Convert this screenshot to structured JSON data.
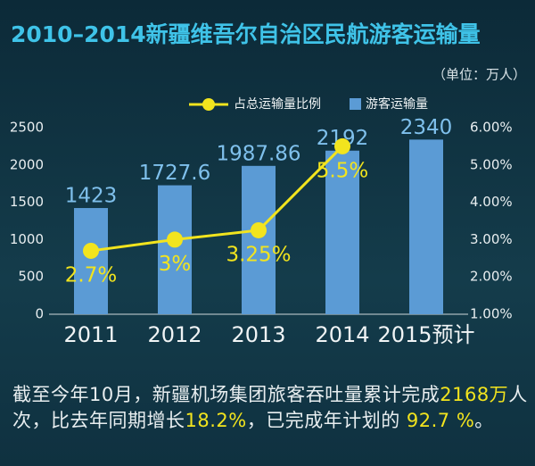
{
  "chart_data": {
    "type": "bar",
    "title": "2010–2014新疆维吾尔自治区民航游客运输量",
    "unit_note": "（单位：万人）",
    "categories": [
      "2011",
      "2012",
      "2013",
      "2014",
      "2015预计"
    ],
    "series": [
      {
        "name": "游客运输量",
        "type": "bar",
        "color": "#5b9bd5",
        "values": [
          1423,
          1727.6,
          1987.86,
          2192,
          2340
        ]
      },
      {
        "name": "占总运输量比例",
        "type": "line",
        "axis": "y2",
        "color": "#f2e41e",
        "values": [
          2.7,
          3,
          3.25,
          5.5,
          null
        ],
        "value_labels": [
          "2.7%",
          "3%",
          "3.25%",
          "5.5%",
          null
        ]
      }
    ],
    "ylim": [
      0,
      2500
    ],
    "yticks": [
      0,
      500,
      1000,
      1500,
      2000,
      2500
    ],
    "y2lim": [
      1,
      6
    ],
    "y2ticks": [
      {
        "value": 1,
        "label": "1.00%"
      },
      {
        "value": 2,
        "label": "2.00%"
      },
      {
        "value": 3,
        "label": "3.00%"
      },
      {
        "value": 4,
        "label": "4.00%"
      },
      {
        "value": 5,
        "label": "5.00%"
      },
      {
        "value": 6,
        "label": "6.00%"
      }
    ],
    "legend": "top",
    "note": [
      {
        "text": "截至今年10月，新疆机场集团旅客吞吐量累计完成",
        "highlight": false
      },
      {
        "text": "2168万",
        "highlight": true
      },
      {
        "text": "人次，比去年同期增长",
        "highlight": false
      },
      {
        "text": "18.2%",
        "highlight": true
      },
      {
        "text": "，已完成年计划的 ",
        "highlight": false
      },
      {
        "text": "92.7 %",
        "highlight": true
      },
      {
        "text": "。",
        "highlight": false
      }
    ]
  }
}
